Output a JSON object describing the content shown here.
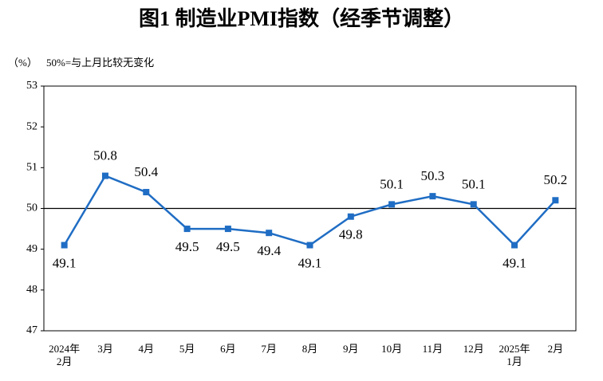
{
  "chart_data": {
    "type": "line",
    "title": "图1  制造业PMI指数（经季节调整）",
    "ylabel": "（%）",
    "annotation": "50%=与上月比较无变化",
    "categories": [
      "2024年\n2月",
      "3月",
      "4月",
      "5月",
      "6月",
      "7月",
      "8月",
      "9月",
      "10月",
      "11月",
      "12月",
      "2025年\n1月",
      "2月"
    ],
    "series": [
      {
        "color": "#1f6dc4",
        "values": [
          49.1,
          50.8,
          50.4,
          49.5,
          49.5,
          49.4,
          49.1,
          49.8,
          50.1,
          50.3,
          50.1,
          49.1,
          50.2
        ]
      }
    ],
    "ylim": [
      47,
      53
    ],
    "yticks": [
      47,
      48,
      49,
      50,
      51,
      52,
      53
    ],
    "reference_line": 50
  }
}
